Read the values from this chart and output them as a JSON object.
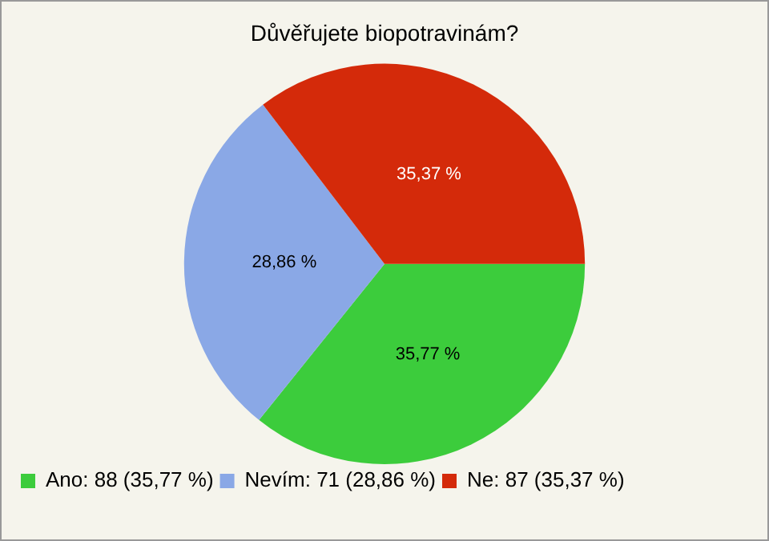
{
  "chart_data": {
    "type": "pie",
    "title": "Důvěřujete biopotravinám?",
    "categories": [
      "Ano: 88 (35,77 %)",
      "Nevím: 71 (28,86 %)",
      "Ne: 87 (35,37 %)"
    ],
    "values": [
      35.77,
      28.86,
      35.37
    ],
    "value_labels": [
      "35,77 %",
      "28,86 %",
      "35,37 %"
    ],
    "colors": [
      "#3ccc3c",
      "#8aa8e6",
      "#d42a0a"
    ],
    "legend": "bottom left"
  }
}
